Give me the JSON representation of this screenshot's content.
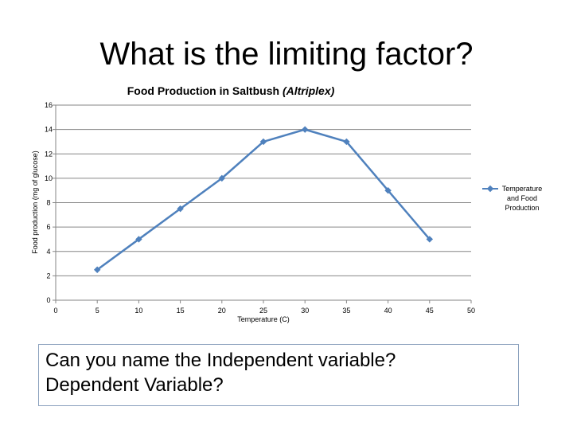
{
  "slide": {
    "title": "What is the limiting factor?",
    "question_line1": "Can you name the Independent variable?",
    "question_line2": "Dependent Variable?"
  },
  "chart_data": {
    "type": "line",
    "title_main": "Food Production in Saltbush ",
    "title_species": "(Altriplex)",
    "xlabel": "Temperature (C)",
    "ylabel": "Food production (mg of glucose)",
    "xlim": [
      0,
      50
    ],
    "ylim": [
      0,
      16
    ],
    "x_ticks": [
      0,
      5,
      10,
      15,
      20,
      25,
      30,
      35,
      40,
      45,
      50
    ],
    "y_ticks": [
      0,
      2,
      4,
      6,
      8,
      10,
      12,
      14,
      16
    ],
    "grid": "horizontal",
    "legend_position": "right",
    "series": [
      {
        "name_lines": [
          "Temperature",
          "and Food",
          "Production"
        ],
        "color": "#4f81bd",
        "x": [
          5,
          10,
          15,
          20,
          25,
          30,
          35,
          40,
          45
        ],
        "y": [
          2.5,
          5,
          7.5,
          10,
          13,
          14,
          13,
          9,
          5
        ]
      }
    ]
  }
}
